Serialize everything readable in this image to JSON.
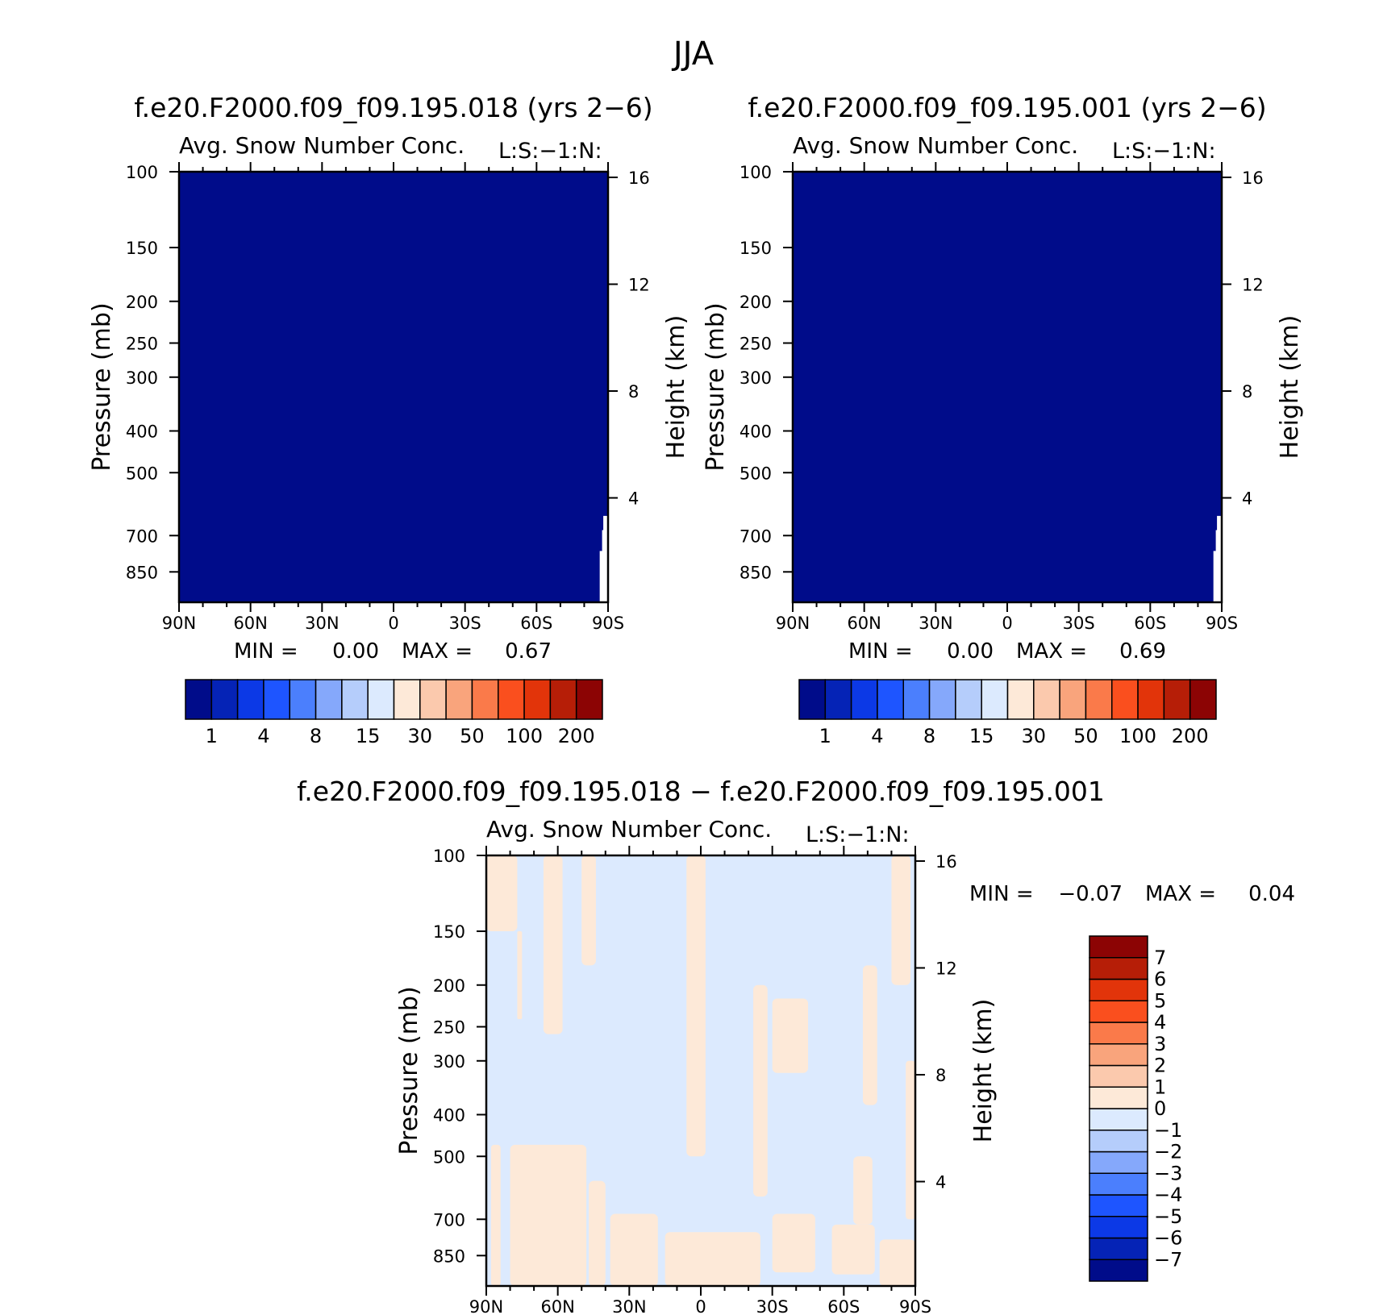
{
  "page_title": "JJA",
  "chart_data": [
    {
      "type": "heatmap",
      "id": "left",
      "title": "f.e20.F2000.f09_f09.195.018 (yrs 2−6)",
      "subtitle": "Avg. Snow Number Conc.",
      "units_label": "L:S:−1:N:",
      "ylabel": "Pressure (mb)",
      "ylabel_right": "Height (km)",
      "x_ticks": [
        "90N",
        "60N",
        "30N",
        "0",
        "30S",
        "60S",
        "90S"
      ],
      "x_values": [
        90,
        60,
        30,
        0,
        -30,
        -60,
        -90
      ],
      "y_ticks": [
        "100",
        "150",
        "200",
        "250",
        "300",
        "400",
        "500",
        "700",
        "850"
      ],
      "y_values": [
        100,
        150,
        200,
        250,
        300,
        400,
        500,
        700,
        850
      ],
      "ylim": [
        100,
        1000
      ],
      "y_scale": "log",
      "right_ticks": [
        "16",
        "12",
        "8",
        "4"
      ],
      "right_values_km": [
        16,
        12,
        8,
        4
      ],
      "stats": {
        "min_label": "MIN =",
        "min": "0.00",
        "max_label": "MAX =",
        "max": "0.67"
      },
      "fill_level": 0,
      "no_data_region": "south-pole lower levels",
      "colorbar": {
        "orientation": "horizontal",
        "colors": [
          "#000c8a",
          "#0523b6",
          "#0c39e6",
          "#1e55ff",
          "#4b7ffd",
          "#85a8fb",
          "#b5cdfb",
          "#dceafe",
          "#fde9d8",
          "#fbc9ad",
          "#f9a47c",
          "#fa7a4a",
          "#fa4f1e",
          "#e2340a",
          "#b61e07",
          "#8c0404"
        ],
        "labels": [
          "1",
          "4",
          "8",
          "15",
          "30",
          "50",
          "100",
          "200"
        ],
        "label_positions": [
          1,
          3,
          5,
          7,
          9,
          11,
          13,
          15
        ]
      }
    },
    {
      "type": "heatmap",
      "id": "right",
      "title": "f.e20.F2000.f09_f09.195.001 (yrs 2−6)",
      "subtitle": "Avg. Snow Number Conc.",
      "units_label": "L:S:−1:N:",
      "ylabel": "Pressure (mb)",
      "ylabel_right": "Height (km)",
      "x_ticks": [
        "90N",
        "60N",
        "30N",
        "0",
        "30S",
        "60S",
        "90S"
      ],
      "x_values": [
        90,
        60,
        30,
        0,
        -30,
        -60,
        -90
      ],
      "y_ticks": [
        "100",
        "150",
        "200",
        "250",
        "300",
        "400",
        "500",
        "700",
        "850"
      ],
      "y_values": [
        100,
        150,
        200,
        250,
        300,
        400,
        500,
        700,
        850
      ],
      "ylim": [
        100,
        1000
      ],
      "y_scale": "log",
      "right_ticks": [
        "16",
        "12",
        "8",
        "4"
      ],
      "right_values_km": [
        16,
        12,
        8,
        4
      ],
      "stats": {
        "min_label": "MIN =",
        "min": "0.00",
        "max_label": "MAX =",
        "max": "0.69"
      },
      "fill_level": 0,
      "no_data_region": "south-pole lower levels",
      "colorbar": {
        "orientation": "horizontal",
        "colors": [
          "#000c8a",
          "#0523b6",
          "#0c39e6",
          "#1e55ff",
          "#4b7ffd",
          "#85a8fb",
          "#b5cdfb",
          "#dceafe",
          "#fde9d8",
          "#fbc9ad",
          "#f9a47c",
          "#fa7a4a",
          "#fa4f1e",
          "#e2340a",
          "#b61e07",
          "#8c0404"
        ],
        "labels": [
          "1",
          "4",
          "8",
          "15",
          "30",
          "50",
          "100",
          "200"
        ],
        "label_positions": [
          1,
          3,
          5,
          7,
          9,
          11,
          13,
          15
        ]
      }
    },
    {
      "type": "heatmap",
      "id": "diff",
      "title": "f.e20.F2000.f09_f09.195.018 − f.e20.F2000.f09_f09.195.001",
      "subtitle": "Avg. Snow Number Conc.",
      "units_label": "L:S:−1:N:",
      "ylabel": "Pressure (mb)",
      "ylabel_right": "Height (km)",
      "x_ticks": [
        "90N",
        "60N",
        "30N",
        "0",
        "30S",
        "60S",
        "90S"
      ],
      "x_values": [
        90,
        60,
        30,
        0,
        -30,
        -60,
        -90
      ],
      "y_ticks": [
        "100",
        "150",
        "200",
        "250",
        "300",
        "400",
        "500",
        "700",
        "850"
      ],
      "y_values": [
        100,
        150,
        200,
        250,
        300,
        400,
        500,
        700,
        850
      ],
      "ylim": [
        100,
        1000
      ],
      "y_scale": "log",
      "right_ticks": [
        "16",
        "12",
        "8",
        "4"
      ],
      "right_values_km": [
        16,
        12,
        8,
        4
      ],
      "stats": {
        "min_label": "MIN =",
        "min": "−0.07",
        "max_label": "MAX =",
        "max": "0.04"
      },
      "background_level": "-1 to 0",
      "positive_level": "0 to 1",
      "positive_regions": [
        {
          "lat": [
            90,
            77
          ],
          "p": [
            100,
            150
          ]
        },
        {
          "lat": [
            77,
            75
          ],
          "p": [
            150,
            240
          ]
        },
        {
          "lat": [
            66,
            58
          ],
          "p": [
            100,
            260
          ]
        },
        {
          "lat": [
            50,
            44
          ],
          "p": [
            100,
            180
          ]
        },
        {
          "lat": [
            6,
            -2
          ],
          "p": [
            100,
            500
          ]
        },
        {
          "lat": [
            -22,
            -28
          ],
          "p": [
            200,
            620
          ]
        },
        {
          "lat": [
            -30,
            -45
          ],
          "p": [
            215,
            320
          ]
        },
        {
          "lat": [
            -68,
            -74
          ],
          "p": [
            180,
            380
          ]
        },
        {
          "lat": [
            -80,
            -88
          ],
          "p": [
            100,
            200
          ]
        },
        {
          "lat": [
            -86,
            -90
          ],
          "p": [
            300,
            700
          ]
        },
        {
          "lat": [
            88,
            84
          ],
          "p": [
            470,
            1000
          ]
        },
        {
          "lat": [
            80,
            48
          ],
          "p": [
            470,
            1000
          ]
        },
        {
          "lat": [
            47,
            40
          ],
          "p": [
            570,
            1000
          ]
        },
        {
          "lat": [
            38,
            18
          ],
          "p": [
            680,
            1000
          ]
        },
        {
          "lat": [
            15,
            -25
          ],
          "p": [
            750,
            1000
          ]
        },
        {
          "lat": [
            -30,
            -48
          ],
          "p": [
            680,
            930
          ]
        },
        {
          "lat": [
            -55,
            -73
          ],
          "p": [
            720,
            940
          ]
        },
        {
          "lat": [
            -64,
            -72
          ],
          "p": [
            500,
            720
          ]
        },
        {
          "lat": [
            -75,
            -90
          ],
          "p": [
            780,
            1000
          ]
        }
      ],
      "colorbar": {
        "orientation": "vertical",
        "colors": [
          "#000c8a",
          "#0523b6",
          "#0c39e6",
          "#1e55ff",
          "#4b7ffd",
          "#85a8fb",
          "#b5cdfb",
          "#dceafe",
          "#fde9d8",
          "#fbc9ad",
          "#f9a47c",
          "#fa7a4a",
          "#fa4f1e",
          "#e2340a",
          "#b61e07",
          "#8c0404"
        ],
        "labels": [
          "−7",
          "−6",
          "−5",
          "−4",
          "−3",
          "−2",
          "−1",
          "0",
          "1",
          "2",
          "3",
          "4",
          "5",
          "6",
          "7"
        ]
      }
    }
  ]
}
